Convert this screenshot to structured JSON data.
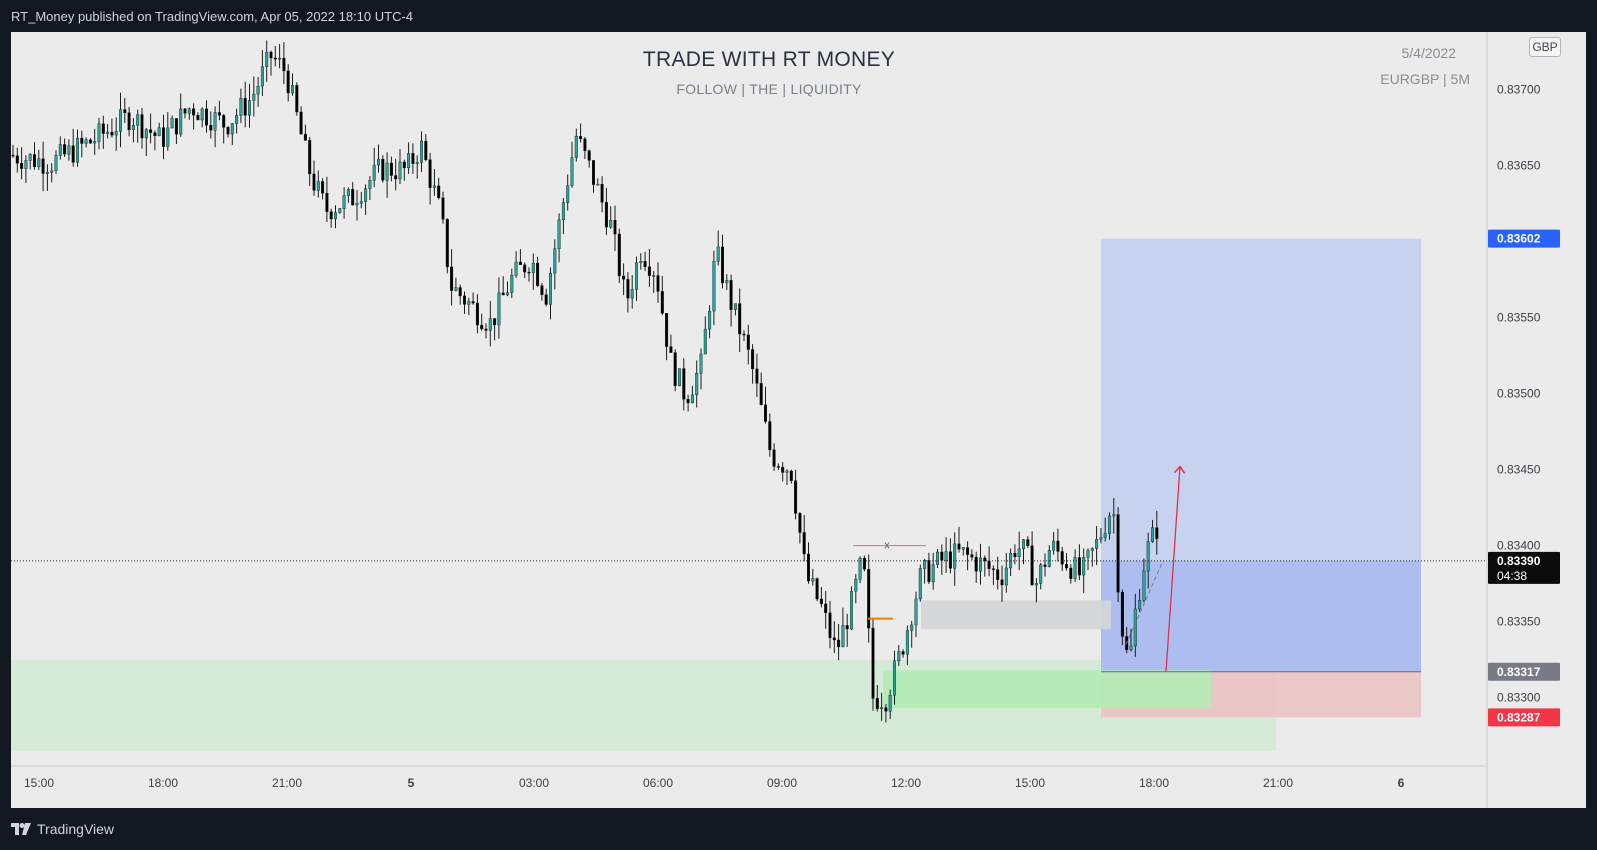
{
  "header": {
    "published_by": "RT_Money published on TradingView.com, Apr 05, 2022 18:10 UTC-4"
  },
  "chart_overlay": {
    "title": "TRADE WITH RT MONEY",
    "subtitle": "FOLLOW   | THE |   LIQUIDITY",
    "date": "5/4/2022",
    "symbol_interval": "EURGBP  |  5M",
    "currency": "GBP"
  },
  "footer": {
    "logo_text": "TradingView"
  },
  "colors": {
    "page_bg": "#131722",
    "chart_bg": "#ebebeb",
    "candle_up": "#26a69a",
    "candle_down": "#000000",
    "target_zone": "#c5d2ee",
    "entry_zone": "#a8b8f0",
    "stop_zone": "#ecc3c4",
    "demand_zone": "#d6ebd7",
    "demand_strong": "#b1ecb3",
    "gray_zone": "#d4d5d6",
    "tp_label": "#2962ff",
    "sl_label": "#f23645",
    "entry_label": "#787b86",
    "arrow": "#e0314e"
  },
  "chart_data": {
    "type": "candlestick",
    "symbol": "EURGBP",
    "interval": "5M",
    "currency": "GBP",
    "y_axis": {
      "range": [
        0.83255,
        0.83738
      ],
      "ticks": [
        "0.83700",
        "0.83650",
        "0.83550",
        "0.83500",
        "0.83450",
        "0.83400",
        "0.83350",
        "0.83300"
      ]
    },
    "x_axis": {
      "labels": [
        "15:00",
        "18:00",
        "21:00",
        "5",
        "03:00",
        "06:00",
        "09:00",
        "12:00",
        "15:00",
        "18:00",
        "21:00",
        "6"
      ]
    },
    "price_labels": {
      "take_profit": "0.83602",
      "current": "0.83390",
      "countdown": "04:38",
      "entry": "0.83317",
      "stop_loss": "0.83287"
    },
    "position": {
      "type": "long",
      "entry": 0.83317,
      "take_profit": 0.83602,
      "stop_loss": 0.83287
    },
    "annotations": [
      {
        "type": "label",
        "text": "x",
        "price": 0.834
      }
    ],
    "price_path": [
      [
        0,
        0.83657
      ],
      [
        40,
        0.83652
      ],
      [
        80,
        0.83666
      ],
      [
        120,
        0.83683
      ],
      [
        150,
        0.83667
      ],
      [
        180,
        0.83689
      ],
      [
        215,
        0.83677
      ],
      [
        240,
        0.83694
      ],
      [
        260,
        0.83722
      ],
      [
        275,
        0.83712
      ],
      [
        300,
        0.83643
      ],
      [
        315,
        0.83621
      ],
      [
        340,
        0.83628
      ],
      [
        370,
        0.83648
      ],
      [
        395,
        0.83647
      ],
      [
        410,
        0.83663
      ],
      [
        430,
        0.83617
      ],
      [
        440,
        0.83571
      ],
      [
        460,
        0.83558
      ],
      [
        480,
        0.83546
      ],
      [
        500,
        0.83575
      ],
      [
        520,
        0.83589
      ],
      [
        535,
        0.83565
      ],
      [
        550,
        0.83618
      ],
      [
        565,
        0.8367
      ],
      [
        580,
        0.83646
      ],
      [
        600,
        0.8361
      ],
      [
        615,
        0.8356
      ],
      [
        630,
        0.83595
      ],
      [
        645,
        0.8358
      ],
      [
        660,
        0.8352
      ],
      [
        675,
        0.83498
      ],
      [
        690,
        0.83518
      ],
      [
        705,
        0.83593
      ],
      [
        720,
        0.8356
      ],
      [
        740,
        0.8352
      ],
      [
        760,
        0.8346
      ],
      [
        780,
        0.8345
      ],
      [
        795,
        0.8338
      ],
      [
        810,
        0.8336
      ],
      [
        825,
        0.8333
      ],
      [
        840,
        0.8336
      ],
      [
        852,
        0.83392
      ],
      [
        862,
        0.833
      ],
      [
        875,
        0.833
      ],
      [
        890,
        0.8333
      ],
      [
        910,
        0.8338
      ],
      [
        930,
        0.8339
      ],
      [
        950,
        0.83395
      ],
      [
        970,
        0.83388
      ],
      [
        990,
        0.8338
      ],
      [
        1005,
        0.834
      ],
      [
        1015,
        0.83395
      ],
      [
        1025,
        0.83375
      ],
      [
        1040,
        0.834
      ],
      [
        1055,
        0.8339
      ],
      [
        1070,
        0.8338
      ],
      [
        1085,
        0.834
      ],
      [
        1102,
        0.83428
      ],
      [
        1110,
        0.8335
      ],
      [
        1118,
        0.8332
      ],
      [
        1125,
        0.8336
      ],
      [
        1135,
        0.83395
      ],
      [
        1148,
        0.83415
      ],
      [
        1160,
        0.8339
      ]
    ]
  }
}
